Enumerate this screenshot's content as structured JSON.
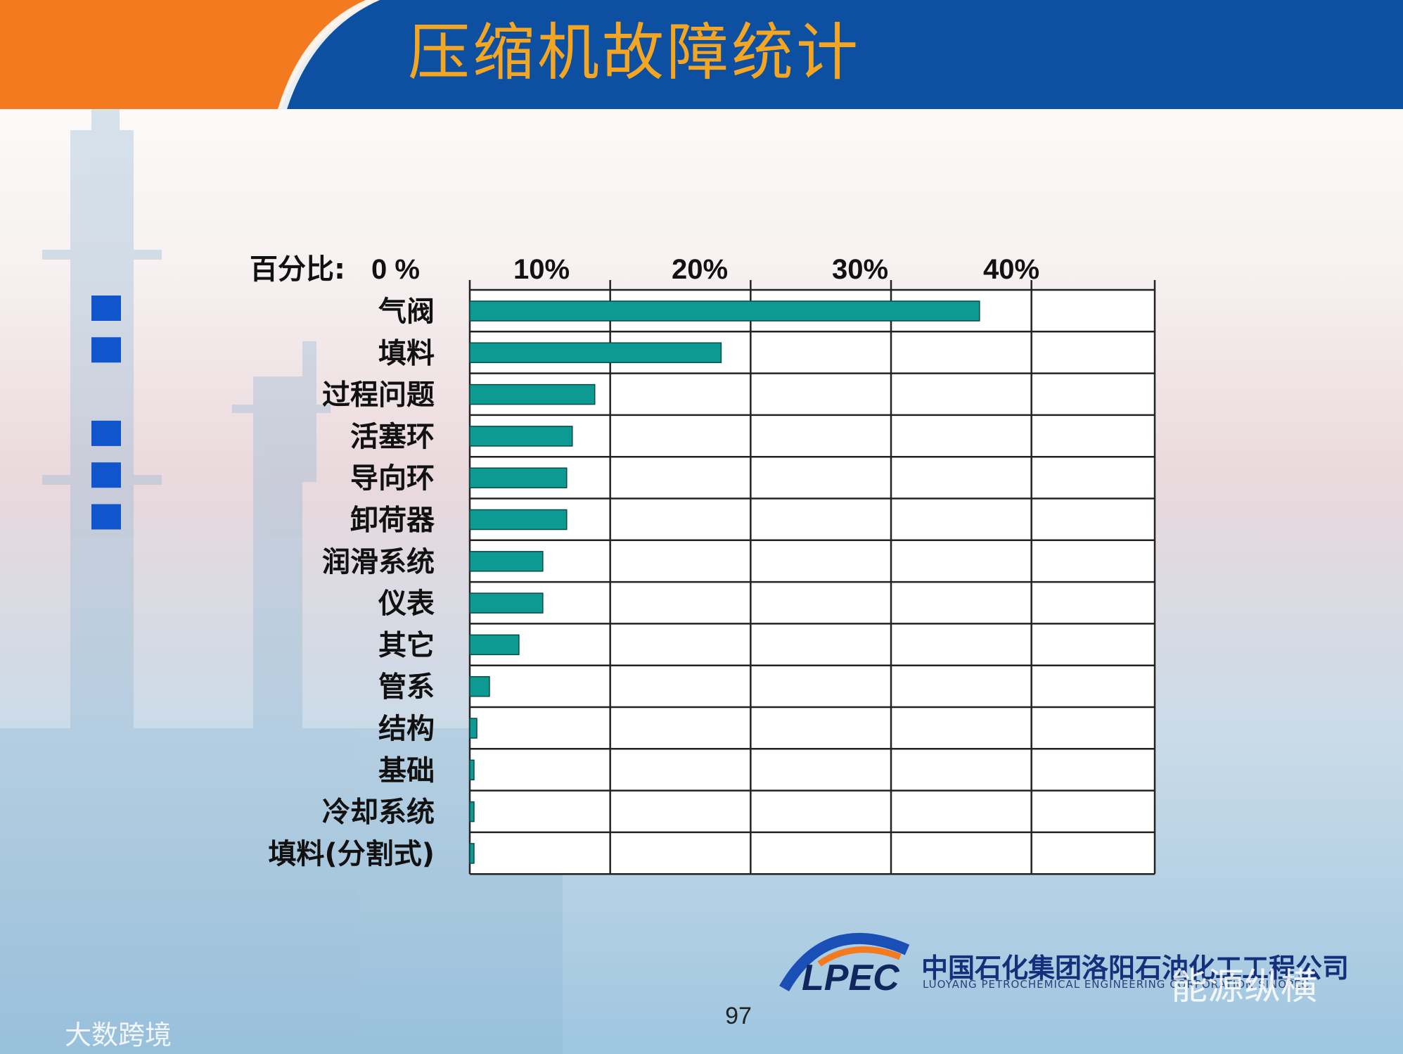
{
  "slide": {
    "title": "压缩机故障统计",
    "page_number": "97",
    "company_cn": "中国石化集团洛阳石油化工工程公司",
    "company_en": "LUOYANG PETROCHEMICAL ENGINEERING CORPORATION SINOPEC",
    "logo_text": "LPEC",
    "watermark_right": "能源纵横",
    "watermark_left": "大数跨境"
  },
  "colors": {
    "header_orange": "#f47a1f",
    "header_blue": "#0d4fa0",
    "title_text": "#f4a623",
    "bar": "#0d9a93",
    "bullet": "#1155cc"
  },
  "chart_data": {
    "type": "bar",
    "orientation": "horizontal",
    "xlabel": "百分比:",
    "tick_labels": [
      "0 %",
      "10%",
      "20%",
      "30%",
      "40%"
    ],
    "xlim": [
      0,
      40
    ],
    "grid": true,
    "categories": [
      "气阀",
      "填料",
      "过程问题",
      "活塞环",
      "导向环",
      "卸荷器",
      "润滑系统",
      "仪表",
      "其它",
      "管系",
      "结构",
      "基础",
      "冷却系统",
      "填料(分割式)"
    ],
    "values": [
      36.3,
      17.9,
      8.9,
      7.3,
      6.9,
      6.9,
      5.2,
      5.2,
      3.5,
      1.4,
      0.5,
      0.3,
      0.3,
      0.3
    ],
    "bullet_rows": [
      0,
      1,
      3,
      4,
      5
    ]
  }
}
